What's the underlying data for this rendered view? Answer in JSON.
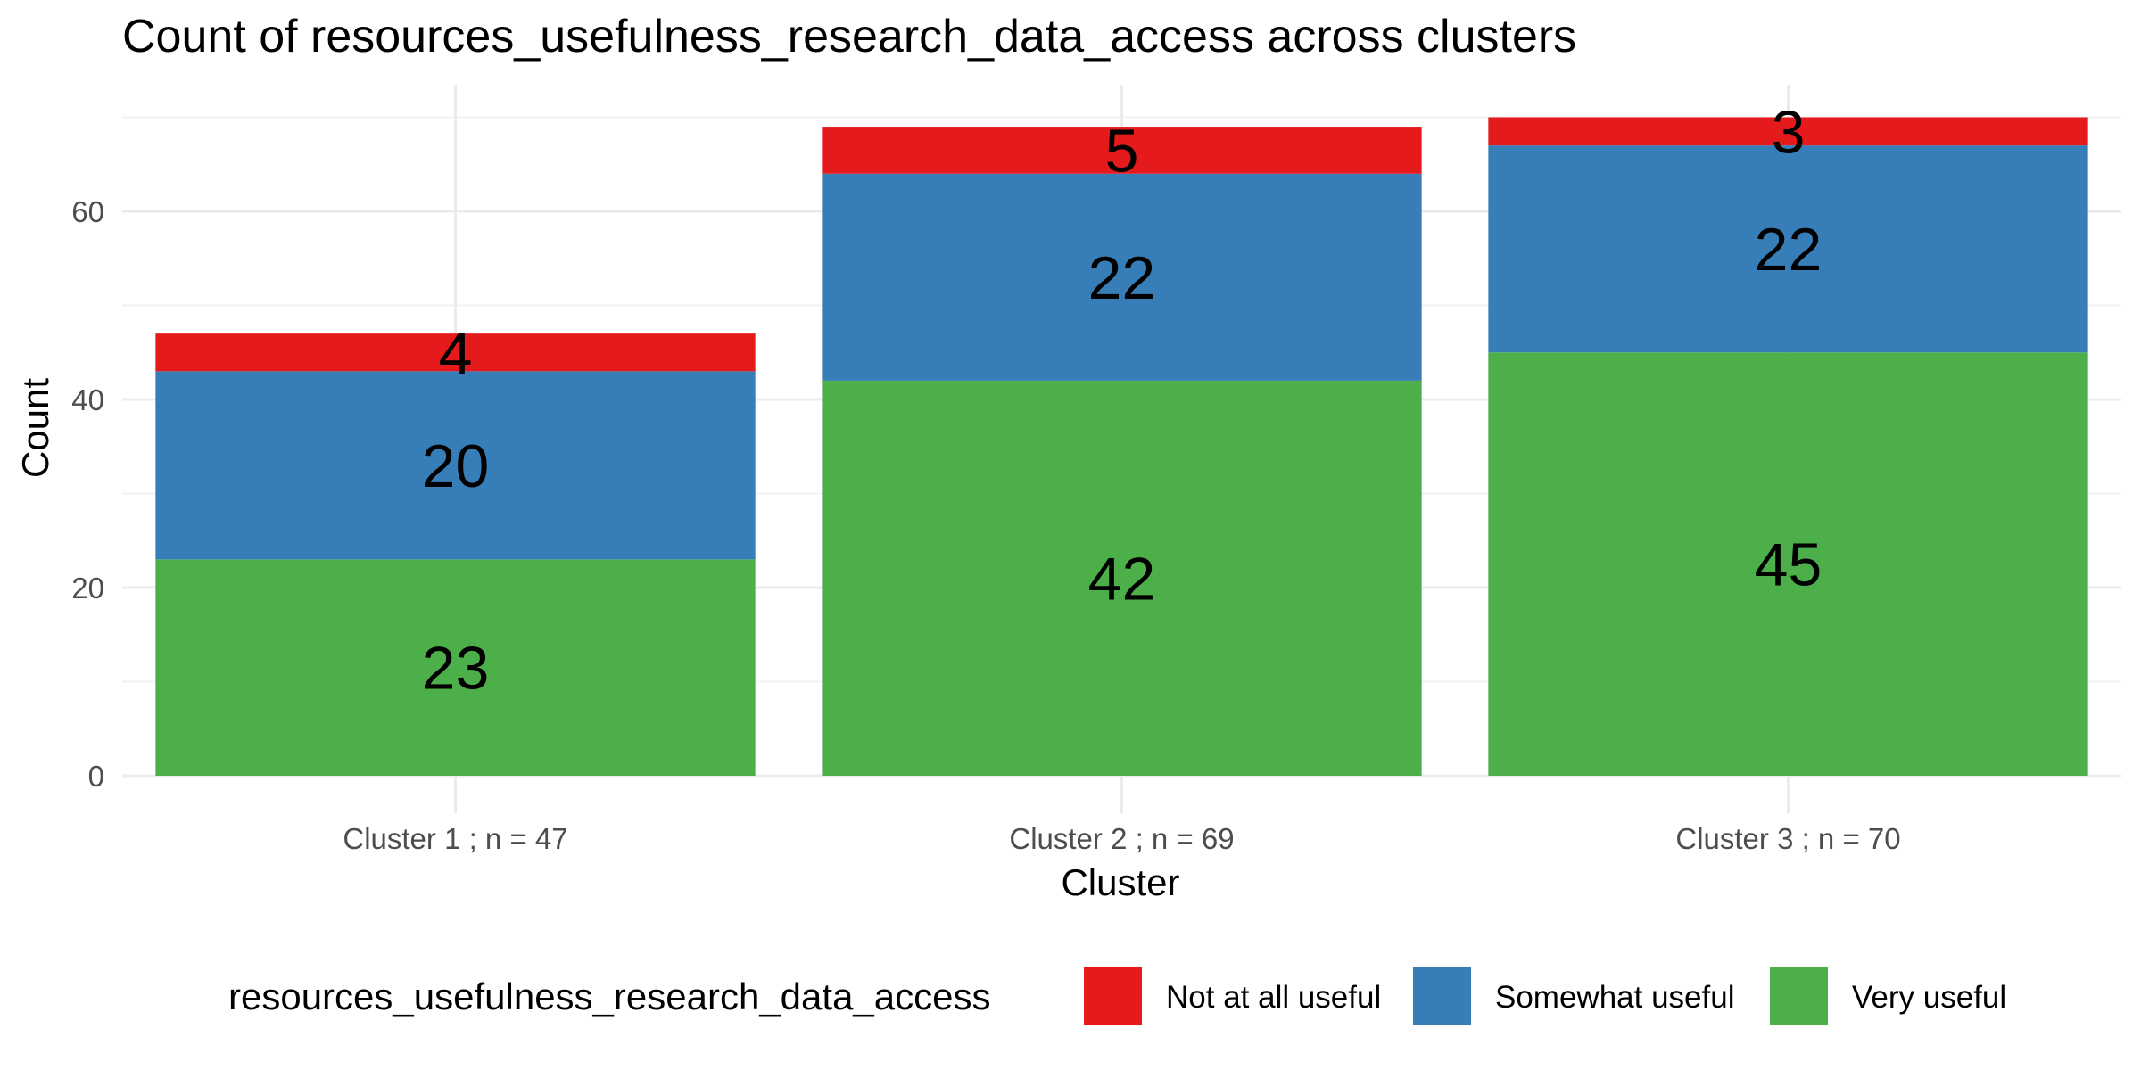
{
  "chart_data": {
    "type": "bar",
    "stacked": true,
    "title": "Count of resources_usefulness_research_data_access across clusters",
    "xlabel": "Cluster",
    "ylabel": "Count",
    "categories": [
      "Cluster 1 ; n = 47",
      "Cluster 2 ; n = 69",
      "Cluster 3 ; n = 70"
    ],
    "series": [
      {
        "name": "Very useful",
        "color": "#4daf4a",
        "values": [
          23,
          42,
          45
        ]
      },
      {
        "name": "Somewhat useful",
        "color": "#377eb8",
        "values": [
          20,
          22,
          22
        ]
      },
      {
        "name": "Not at all useful",
        "color": "#e41a1c",
        "values": [
          4,
          5,
          3
        ]
      }
    ],
    "ylim": [
      0,
      70
    ],
    "yticks": [
      "0",
      "20",
      "40",
      "60"
    ],
    "grid": true,
    "legend": {
      "title": "resources_usefulness_research_data_access",
      "position": "bottom",
      "order": [
        "Not at all useful",
        "Somewhat useful",
        "Very useful"
      ]
    }
  }
}
